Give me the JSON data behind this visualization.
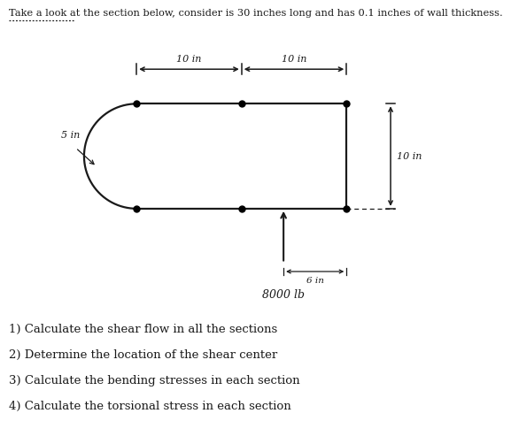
{
  "fig_width": 5.59,
  "fig_height": 4.81,
  "bg_color": "#ffffff",
  "lc": "#1a1a1a",
  "title": "Take a look at the section below, consider is 30 inches long and has 0.1 inches of wall thickness.",
  "questions": [
    "1) Calculate the shear flow in all the sections",
    "2) Determine the location of the shear center",
    "3) Calculate the bending stresses in each section",
    "4) Calculate the torsional stress in each section"
  ],
  "label_10in_h1": "10 in",
  "label_10in_h2": "10 in",
  "label_5in": "5 in",
  "label_10in_v": "10 in",
  "label_6in": "6 in",
  "label_force": "8000 lb"
}
